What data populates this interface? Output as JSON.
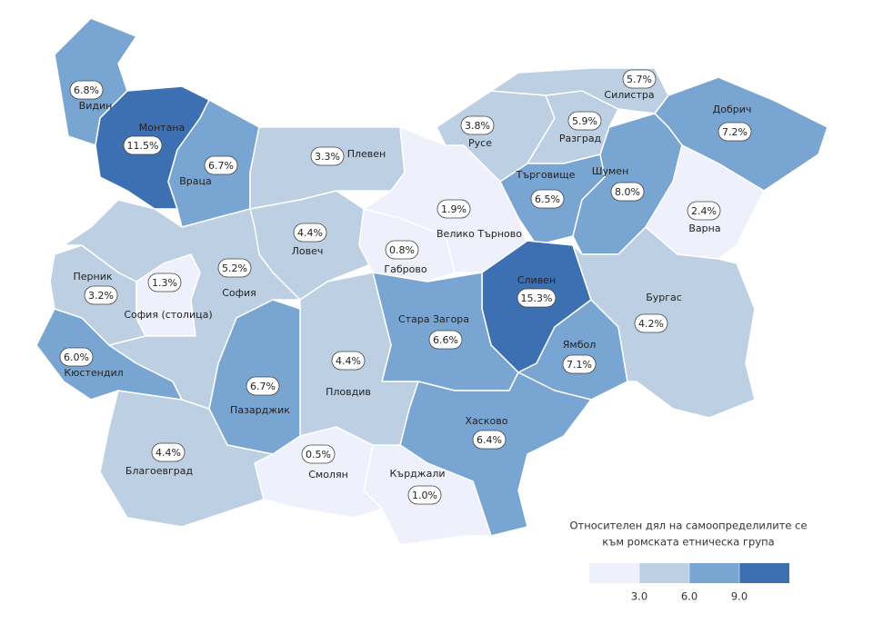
{
  "map": {
    "regions": [
      {
        "name": "Видин",
        "value": 6.8,
        "value_label": "6.8%"
      },
      {
        "name": "Монтана",
        "value": 11.5,
        "value_label": "11.5%"
      },
      {
        "name": "Враца",
        "value": 6.7,
        "value_label": "6.7%"
      },
      {
        "name": "Плевен",
        "value": 3.3,
        "value_label": "3.3%"
      },
      {
        "name": "Ловеч",
        "value": 4.4,
        "value_label": "4.4%"
      },
      {
        "name": "Габрово",
        "value": 0.8,
        "value_label": "0.8%"
      },
      {
        "name": "Велико Търново",
        "value": 1.9,
        "value_label": "1.9%"
      },
      {
        "name": "Русе",
        "value": 3.8,
        "value_label": "3.8%"
      },
      {
        "name": "Разград",
        "value": 5.9,
        "value_label": "5.9%"
      },
      {
        "name": "Силистра",
        "value": 5.7,
        "value_label": "5.7%"
      },
      {
        "name": "Добрич",
        "value": 7.2,
        "value_label": "7.2%"
      },
      {
        "name": "Търговище",
        "value": 6.5,
        "value_label": "6.5%"
      },
      {
        "name": "Шумен",
        "value": 8.0,
        "value_label": "8.0%"
      },
      {
        "name": "Варна",
        "value": 2.4,
        "value_label": "2.4%"
      },
      {
        "name": "Сливен",
        "value": 15.3,
        "value_label": "15.3%"
      },
      {
        "name": "Ямбол",
        "value": 7.1,
        "value_label": "7.1%"
      },
      {
        "name": "Бургас",
        "value": 4.2,
        "value_label": "4.2%"
      },
      {
        "name": "Стара Загора",
        "value": 6.6,
        "value_label": "6.6%"
      },
      {
        "name": "Хасково",
        "value": 6.4,
        "value_label": "6.4%"
      },
      {
        "name": "Кърджали",
        "value": 1.0,
        "value_label": "1.0%"
      },
      {
        "name": "Смолян",
        "value": 0.5,
        "value_label": "0.5%"
      },
      {
        "name": "Пловдив",
        "value": 4.4,
        "value_label": "4.4%"
      },
      {
        "name": "Пазарджик",
        "value": 6.7,
        "value_label": "6.7%"
      },
      {
        "name": "Благоевград",
        "value": 4.4,
        "value_label": "4.4%"
      },
      {
        "name": "Кюстендил",
        "value": 6.0,
        "value_label": "6.0%"
      },
      {
        "name": "Перник",
        "value": 3.2,
        "value_label": "3.2%"
      },
      {
        "name": "София (столица)",
        "value": 1.3,
        "value_label": "1.3%"
      },
      {
        "name": "София",
        "value": 5.2,
        "value_label": "5.2%"
      }
    ],
    "legend": {
      "title": [
        "Относителен дял на самоопределилите се",
        "към ромската етническа група"
      ],
      "ticks": [
        {
          "value": 3,
          "label": "3.0"
        },
        {
          "value": 6,
          "label": "6.0"
        },
        {
          "value": 9,
          "label": "9.0"
        }
      ],
      "colors": [
        "#eef0fb",
        "#bccfe3",
        "#79a5d3",
        "#3d6fb3"
      ]
    }
  }
}
